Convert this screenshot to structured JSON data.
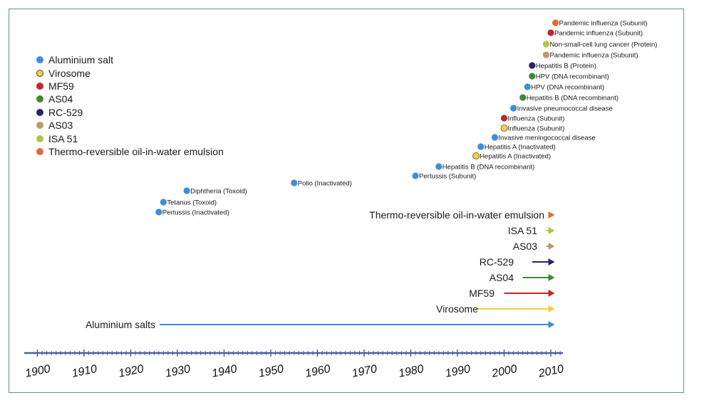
{
  "chart_data": {
    "type": "scatter",
    "x_ticks": [
      "1900",
      "1910",
      "1920",
      "1930",
      "1940",
      "1950",
      "1960",
      "1970",
      "1980",
      "1990",
      "2000",
      "2010"
    ],
    "legend": [
      {
        "key": "aluminium",
        "label": "Aluminium salt",
        "color": "#3b8fd8"
      },
      {
        "key": "virosome",
        "label": "Virosome",
        "color": "#f2cf45"
      },
      {
        "key": "mf59",
        "label": "MF59",
        "color": "#c2282d"
      },
      {
        "key": "as04",
        "label": "AS04",
        "color": "#3d8a35"
      },
      {
        "key": "rc529",
        "label": "RC-529",
        "color": "#24246e"
      },
      {
        "key": "as03",
        "label": "AS03",
        "color": "#b89a6e"
      },
      {
        "key": "isa51",
        "label": "ISA 51",
        "color": "#a9c74a"
      },
      {
        "key": "thermo",
        "label": "Thermo-reversible oil-in-water emulsion",
        "color": "#e06b3a"
      }
    ],
    "events": [
      {
        "year": 1926,
        "adjuvant": "aluminium",
        "label": "Pertussis (Inactivated)"
      },
      {
        "year": 1927,
        "adjuvant": "aluminium",
        "label": "Tetanus (Toxoid)"
      },
      {
        "year": 1932,
        "adjuvant": "aluminium",
        "label": "Diphtheria (Toxoid)"
      },
      {
        "year": 1955,
        "adjuvant": "aluminium",
        "label": "Polio (Inactivated)"
      },
      {
        "year": 1981,
        "adjuvant": "aluminium",
        "label": "Pertussis (Subunit)"
      },
      {
        "year": 1986,
        "adjuvant": "aluminium",
        "label": "Hepatitis B (DNA recombinant)"
      },
      {
        "year": 1994,
        "adjuvant": "virosome",
        "label": "Hepatitis A (Inactivated)"
      },
      {
        "year": 1995,
        "adjuvant": "aluminium",
        "label": "Hepatitis A (Inactivated)"
      },
      {
        "year": 1998,
        "adjuvant": "aluminium",
        "label": "Invasive meningococcal disease"
      },
      {
        "year": 2000,
        "adjuvant": "virosome",
        "label": "Influenza (Subunit)"
      },
      {
        "year": 2000,
        "adjuvant": "mf59",
        "label": "Influenza (Subunit)"
      },
      {
        "year": 2002,
        "adjuvant": "aluminium",
        "label": "Invasive pneumococcal disease"
      },
      {
        "year": 2004,
        "adjuvant": "as04",
        "label": "Hepatitis B (DNA recombinant)"
      },
      {
        "year": 2005,
        "adjuvant": "aluminium",
        "label": "HPV (DNA recombinant)"
      },
      {
        "year": 2006,
        "adjuvant": "as04",
        "label": "HPV (DNA recombinant)"
      },
      {
        "year": 2006,
        "adjuvant": "rc529",
        "label": "Hepatitis B (Protein)"
      },
      {
        "year": 2009,
        "adjuvant": "as03",
        "label": "Pandemic influenza (Subunit)"
      },
      {
        "year": 2009,
        "adjuvant": "isa51",
        "label": "Non-small-cell lung cancer (Protein)"
      },
      {
        "year": 2010,
        "adjuvant": "mf59",
        "label": "Pandemic influenza (Subunit)"
      },
      {
        "year": 2011,
        "adjuvant": "thermo",
        "label": "Pandemic influenza (Subunit)"
      }
    ],
    "timelines": [
      {
        "adjuvant": "thermo",
        "label": "Thermo-reversible oil-in-water emulsion",
        "start": 2011,
        "end": 2011
      },
      {
        "adjuvant": "isa51",
        "label": "ISA 51",
        "start": 2009,
        "end": 2011
      },
      {
        "adjuvant": "as03",
        "label": "AS03",
        "start": 2009,
        "end": 2011
      },
      {
        "adjuvant": "rc529",
        "label": "RC-529",
        "start": 2006,
        "end": 2011
      },
      {
        "adjuvant": "as04",
        "label": "AS04",
        "start": 2004,
        "end": 2011
      },
      {
        "adjuvant": "mf59",
        "label": "MF59",
        "start": 2000,
        "end": 2011
      },
      {
        "adjuvant": "virosome",
        "label": "Virosome",
        "start": 1994,
        "end": 2011
      },
      {
        "adjuvant": "aluminium",
        "label": "Aluminium salts",
        "start": 1926,
        "end": 2011
      }
    ],
    "axis_line_color": "#4a5fa8",
    "xlim": [
      1900,
      2012
    ]
  }
}
